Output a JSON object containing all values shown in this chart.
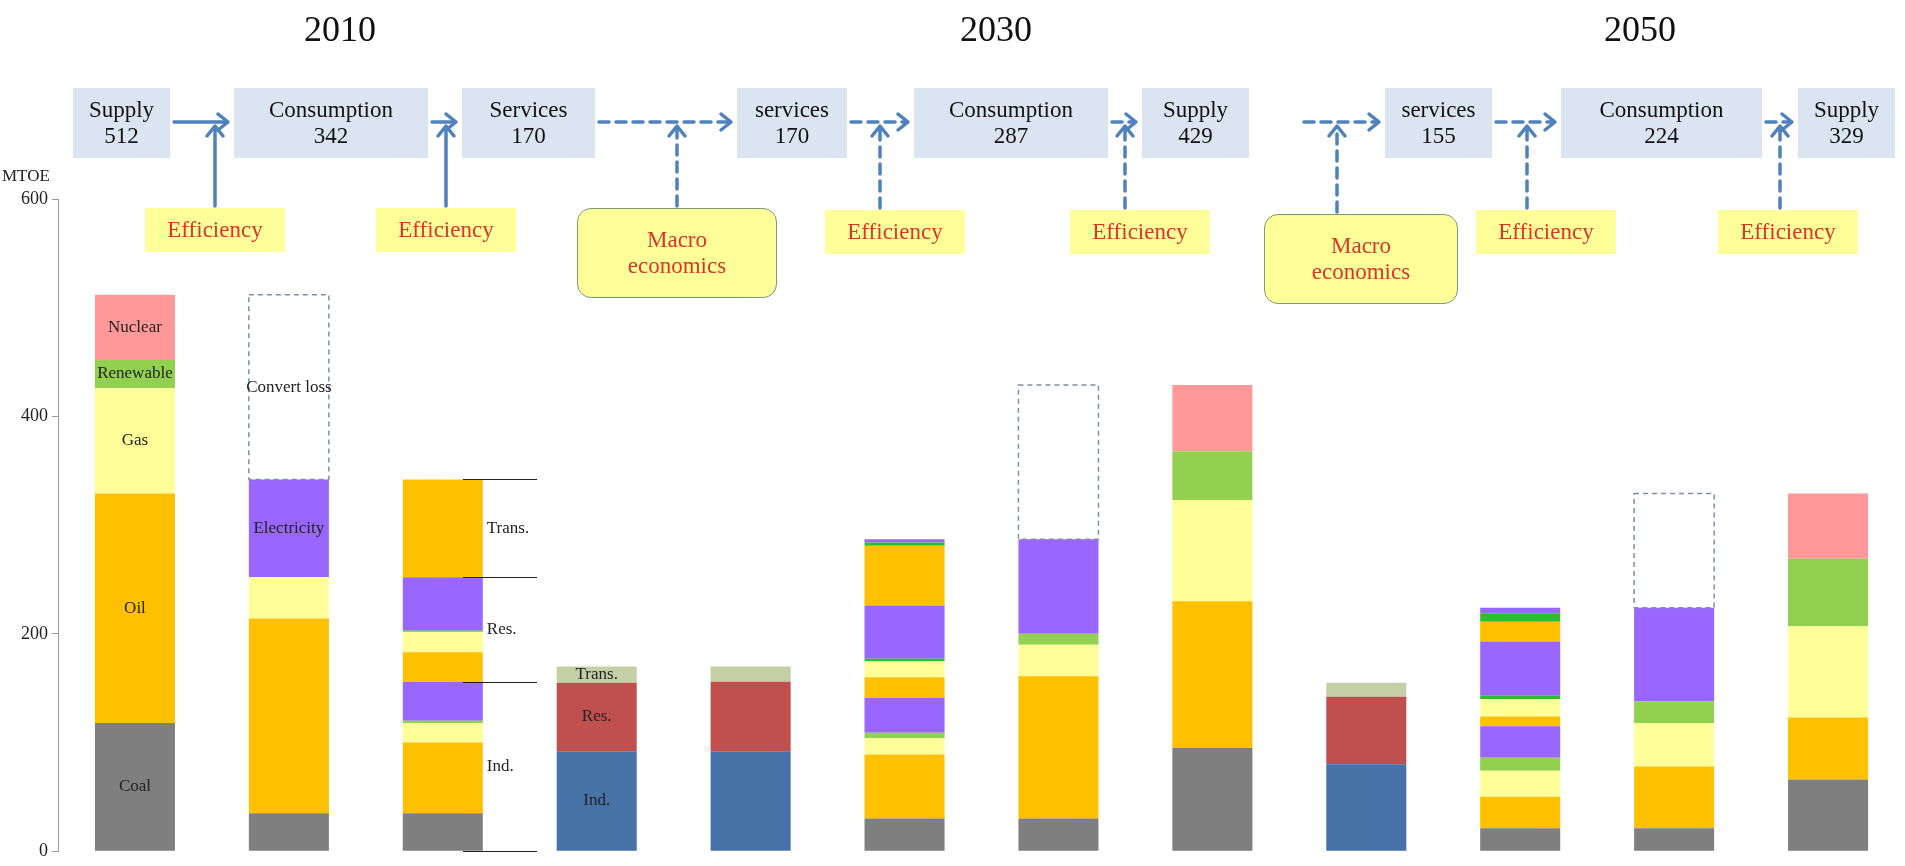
{
  "chart_data": {
    "type": "bar",
    "stacked": true,
    "ylabel": "MTOE",
    "ylim": [
      0,
      600
    ],
    "yticks": [
      0,
      200,
      400,
      600
    ],
    "grid": false,
    "legend": false,
    "tick_labels": "y",
    "categories": [
      null,
      null,
      null,
      null,
      null,
      null,
      null,
      null,
      null,
      null,
      null,
      null
    ],
    "series": [
      {
        "name": "Coal",
        "color": "#7f7f7f",
        "values": [
          118,
          35,
          35,
          null,
          null,
          30,
          30,
          95,
          null,
          21,
          21,
          66
        ]
      },
      {
        "name": "Ind.",
        "color": "#4672a8",
        "values": [
          null,
          null,
          null,
          92,
          92,
          null,
          null,
          null,
          80,
          null,
          null,
          null
        ]
      },
      {
        "name": "Oil",
        "color": "#ffc000",
        "values": [
          211,
          179,
          65,
          null,
          null,
          59,
          131,
          135,
          null,
          29,
          57,
          57
        ]
      },
      {
        "name": "Gas",
        "color": "#ffff99",
        "values": [
          97,
          38,
          18,
          null,
          null,
          15,
          29,
          93,
          null,
          24,
          40,
          84
        ]
      },
      {
        "name": "Renewable",
        "color": "#92d050",
        "values": [
          26,
          null,
          2,
          null,
          null,
          5,
          10,
          45,
          null,
          12,
          20,
          62
        ]
      },
      {
        "name": "Electricity",
        "color": "#9966ff",
        "values": [
          null,
          90,
          36,
          null,
          null,
          32,
          87,
          null,
          null,
          29,
          86,
          null
        ]
      },
      {
        "name": "Res.",
        "color": "#c0504d",
        "values": [
          null,
          null,
          null,
          63,
          64,
          null,
          null,
          null,
          62,
          null,
          null,
          null
        ]
      },
      {
        "color": "#ffc000",
        "values": [
          null,
          null,
          27,
          null,
          null,
          19,
          null,
          null,
          null,
          9,
          null,
          null
        ]
      },
      {
        "color": "#ffff99",
        "values": [
          null,
          null,
          19,
          null,
          null,
          15,
          null,
          null,
          null,
          16,
          null,
          null
        ]
      },
      {
        "color": "#2ebd2e",
        "values": [
          null,
          null,
          1,
          null,
          null,
          2,
          null,
          null,
          null,
          3,
          null,
          null
        ]
      },
      {
        "color": "#9966ff",
        "values": [
          null,
          null,
          49,
          null,
          null,
          49,
          null,
          null,
          null,
          50,
          null,
          null
        ]
      },
      {
        "name": "Trans.",
        "color": "#c4cfa5",
        "values": [
          null,
          null,
          null,
          15,
          14,
          null,
          null,
          null,
          13,
          null,
          null,
          null
        ]
      },
      {
        "color": "#ffc000",
        "values": [
          null,
          null,
          90,
          null,
          null,
          55,
          null,
          null,
          null,
          18,
          null,
          null
        ]
      },
      {
        "color": "#2ebd2e",
        "values": [
          null,
          null,
          null,
          null,
          null,
          3,
          null,
          null,
          null,
          8,
          null,
          null
        ]
      },
      {
        "color": "#9966ff",
        "values": [
          null,
          null,
          null,
          null,
          null,
          3,
          null,
          null,
          null,
          5,
          null,
          null
        ]
      },
      {
        "name": "Nuclear",
        "color": "#ff9999",
        "values": [
          60,
          null,
          null,
          null,
          null,
          null,
          null,
          61,
          null,
          null,
          null,
          60
        ]
      },
      {
        "name": "Convert loss",
        "color": "#ffffff",
        "line_style": "dashed",
        "values": [
          null,
          170,
          null,
          null,
          null,
          null,
          142,
          null,
          null,
          null,
          105,
          null
        ]
      }
    ],
    "annotations": [
      "2010",
      "2030",
      "2050",
      "Supply\n512",
      "Consumption\n342",
      "Services\n170",
      "services\n170",
      "Consumption\n287",
      "Supply\n429",
      "services\n155",
      "Consumption\n224",
      "Supply\n329",
      "Efficiency",
      "Efficiency",
      "Macro economics",
      "Efficiency",
      "Efficiency",
      "Macro economics",
      "Efficiency",
      "Efficiency",
      "Trans.",
      "Res.",
      "Ind."
    ]
  }
}
